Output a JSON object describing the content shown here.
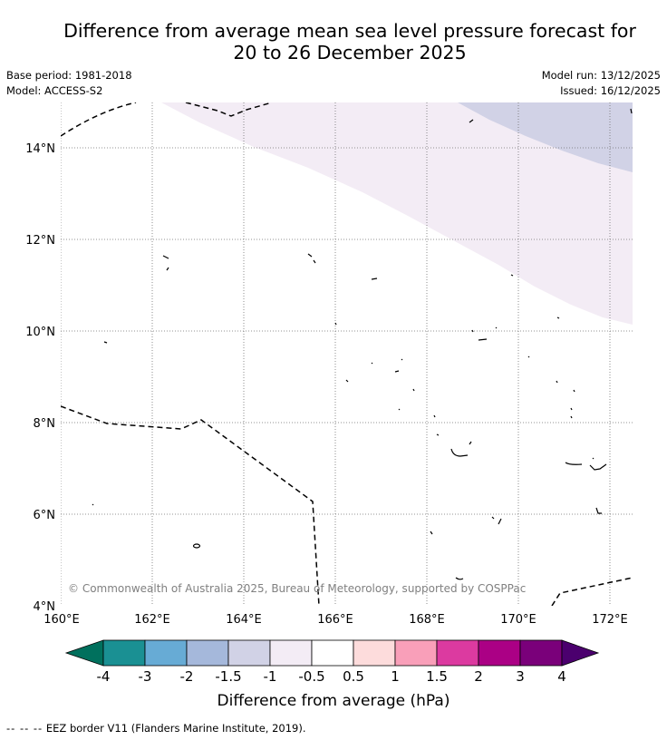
{
  "title": {
    "line1": "Difference from average mean sea level pressure forecast for",
    "line2": "20 to 26 December 2025"
  },
  "meta": {
    "base_period": "Base period: 1981-2018",
    "model": "Model: ACCESS-S2",
    "model_run": "Model run: 13/12/2025",
    "issued": "Issued: 16/12/2025"
  },
  "map": {
    "lon_ticks": [
      "160°E",
      "162°E",
      "164°E",
      "166°E",
      "168°E",
      "170°E",
      "172°E"
    ],
    "lat_ticks": [
      "14°N",
      "12°N",
      "10°N",
      "8°N",
      "6°N",
      "4°N"
    ],
    "copyright": "© Commonwealth of Australia 2025, Bureau of Meteorology, supported by COSPPac",
    "anomaly_regions": [
      {
        "range": "-1 to -0.5",
        "color": "#f3ecf5"
      },
      {
        "range": "-1.5 to -1",
        "color": "#d1d2e6"
      }
    ]
  },
  "colorbar": {
    "title": "Difference from average (hPa)",
    "labels": [
      "-4",
      "-3",
      "-2",
      "-1.5",
      "-1",
      "-0.5",
      "0.5",
      "1",
      "1.5",
      "2",
      "3",
      "4"
    ],
    "colors": [
      "#00705d",
      "#1a9093",
      "#67abd5",
      "#a5b8db",
      "#d1d2e6",
      "#f3ecf5",
      "#ffffff",
      "#fddcdc",
      "#f99fb9",
      "#dc3aa0",
      "#ab0085",
      "#7a007a",
      "#4b006e"
    ]
  },
  "footer": {
    "legend_symbol": "-- -- --",
    "legend_text": "EEZ border V11 (Flanders Marine Institute, 2019)."
  }
}
